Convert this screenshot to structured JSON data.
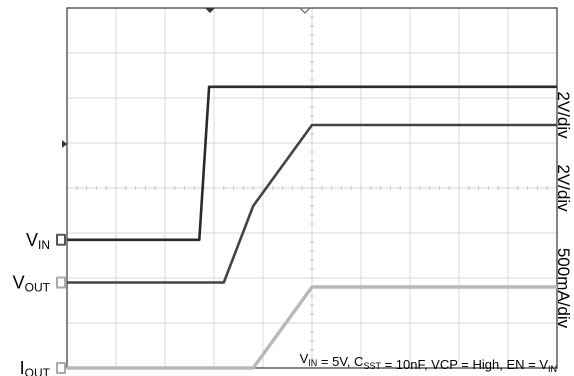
{
  "chart_data": {
    "type": "line",
    "title": "",
    "xlabel": "",
    "ylabel": "",
    "grid": true,
    "x_divisions": 10,
    "y_divisions": 8,
    "x": [
      0,
      1,
      2,
      2.7,
      2.9,
      3.2,
      3.8,
      5,
      6,
      10
    ],
    "series": [
      {
        "name": "",
        "label_main": "V",
        "label_sub": "IN",
        "scale": "2V/div",
        "color": "#2a2a2a",
        "values": [
          2.85,
          2.85,
          2.85,
          2.85,
          6.25,
          6.25,
          6.25,
          6.25,
          6.25,
          6.25
        ]
      },
      {
        "name": "",
        "label_main": "V",
        "label_sub": "OUT",
        "scale": "2V/div",
        "color": "#444444",
        "values": [
          1.9,
          1.9,
          1.9,
          1.9,
          1.9,
          1.9,
          3.6,
          5.4,
          5.4,
          5.4
        ]
      },
      {
        "name": "",
        "label_main": "I",
        "label_sub": "OUT",
        "scale": "500mA/div",
        "color": "#b8b8b8",
        "values": [
          0,
          0,
          0,
          0,
          0,
          0,
          0,
          1.8,
          1.8,
          1.8
        ]
      }
    ],
    "annotation": {
      "parts": [
        {
          "t": "V",
          "sub": false
        },
        {
          "t": "IN",
          "sub": true
        },
        {
          "t": " = 5V, C",
          "sub": false
        },
        {
          "t": "SST",
          "sub": true
        },
        {
          "t": " = 10nF, VCP = High, EN = V",
          "sub": false
        },
        {
          "t": "IN",
          "sub": true
        }
      ]
    }
  }
}
